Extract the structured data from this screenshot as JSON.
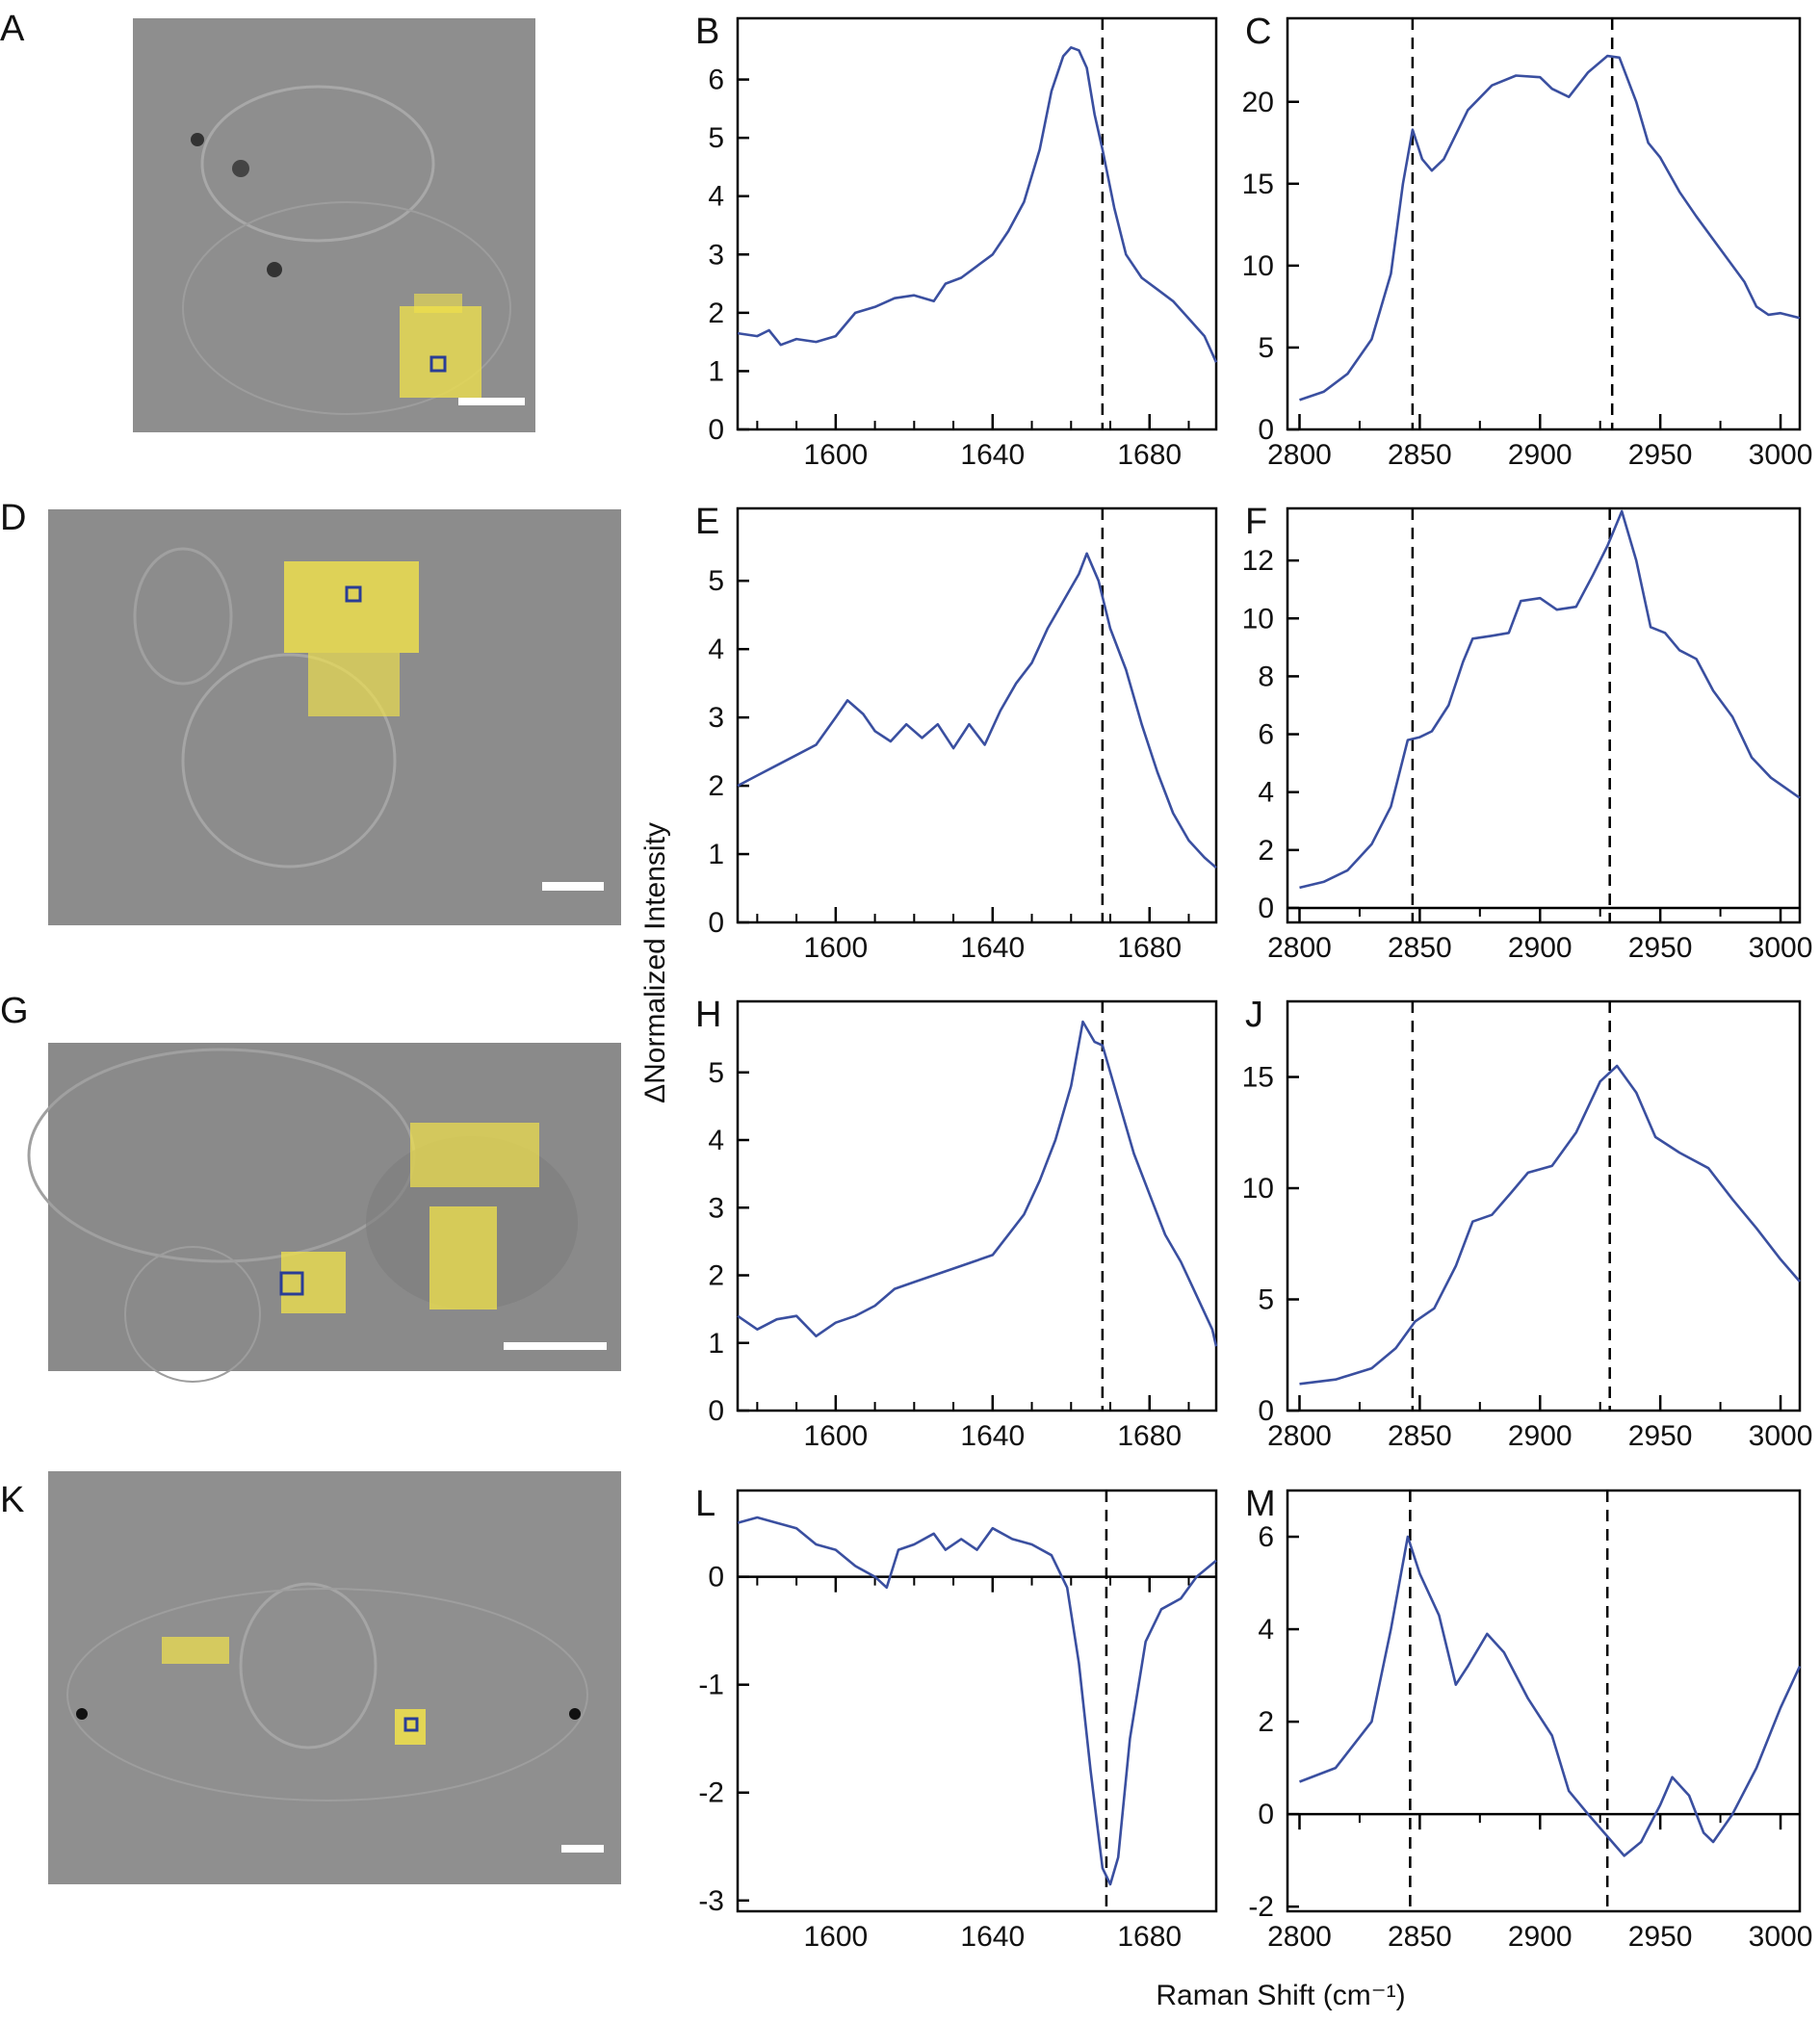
{
  "image_panels": [
    "A",
    "D",
    "G",
    "K"
  ],
  "y_label": "ΔNormalized Intensity",
  "x_label": "Raman Shift (cm⁻¹)",
  "chart_data": [
    {
      "type": "line",
      "title": "B",
      "color": "#3a4fa0",
      "x": [
        1575,
        1580,
        1583,
        1586,
        1590,
        1595,
        1600,
        1605,
        1610,
        1615,
        1620,
        1625,
        1628,
        1632,
        1636,
        1640,
        1644,
        1648,
        1652,
        1655,
        1658,
        1660,
        1662,
        1664,
        1666,
        1668,
        1671,
        1674,
        1678,
        1682,
        1686,
        1690,
        1694,
        1697
      ],
      "values": [
        1.65,
        1.6,
        1.7,
        1.45,
        1.55,
        1.5,
        1.6,
        2.0,
        2.1,
        2.25,
        2.3,
        2.2,
        2.5,
        2.6,
        2.8,
        3.0,
        3.4,
        3.9,
        4.8,
        5.8,
        6.4,
        6.55,
        6.5,
        6.2,
        5.4,
        4.8,
        3.8,
        3.0,
        2.6,
        2.4,
        2.2,
        1.9,
        1.6,
        1.15
      ],
      "xlim": [
        1575,
        1697
      ],
      "xticks": [
        1600,
        1640,
        1680
      ],
      "xminorticks": [
        1580,
        1590,
        1610,
        1620,
        1630,
        1650,
        1660,
        1670,
        1690
      ],
      "ylim": [
        0,
        7.05
      ],
      "yticks": [
        0,
        1,
        2,
        3,
        4,
        5,
        6
      ],
      "vlines": [
        1668
      ]
    },
    {
      "type": "line",
      "title": "C",
      "color": "#3a4fa0",
      "x": [
        2800,
        2810,
        2820,
        2830,
        2838,
        2843,
        2847,
        2851,
        2855,
        2860,
        2865,
        2870,
        2880,
        2890,
        2900,
        2905,
        2912,
        2920,
        2928,
        2933,
        2940,
        2945,
        2950,
        2958,
        2965,
        2975,
        2985,
        2990,
        2995,
        3000,
        3008
      ],
      "values": [
        1.8,
        2.3,
        3.4,
        5.5,
        9.5,
        15,
        18.3,
        16.5,
        15.8,
        16.5,
        18,
        19.5,
        21,
        21.6,
        21.5,
        20.8,
        20.3,
        21.8,
        22.8,
        22.7,
        20,
        17.5,
        16.6,
        14.5,
        13,
        11,
        9,
        7.5,
        7,
        7.1,
        6.8
      ],
      "xlim": [
        2795,
        3008
      ],
      "xticks": [
        2800,
        2850,
        2900,
        2950,
        3000
      ],
      "xminorticks": [
        2825,
        2875,
        2925,
        2975
      ],
      "ylim": [
        0,
        25.1
      ],
      "yticks": [
        0,
        5,
        10,
        15,
        20
      ],
      "vlines": [
        2847,
        2930
      ]
    },
    {
      "type": "line",
      "title": "E",
      "color": "#3a4fa0",
      "x": [
        1575,
        1580,
        1585,
        1590,
        1595,
        1600,
        1603,
        1607,
        1610,
        1614,
        1618,
        1622,
        1626,
        1630,
        1634,
        1638,
        1642,
        1646,
        1650,
        1654,
        1658,
        1662,
        1664,
        1667,
        1670,
        1674,
        1678,
        1682,
        1686,
        1690,
        1694,
        1697
      ],
      "values": [
        2.0,
        2.15,
        2.3,
        2.45,
        2.6,
        3.0,
        3.25,
        3.05,
        2.8,
        2.65,
        2.9,
        2.7,
        2.9,
        2.55,
        2.9,
        2.6,
        3.1,
        3.5,
        3.8,
        4.3,
        4.7,
        5.1,
        5.4,
        5.0,
        4.3,
        3.7,
        2.9,
        2.2,
        1.6,
        1.2,
        0.95,
        0.8
      ],
      "xlim": [
        1575,
        1697
      ],
      "xticks": [
        1600,
        1640,
        1680
      ],
      "xminorticks": [
        1580,
        1590,
        1610,
        1620,
        1630,
        1650,
        1660,
        1670,
        1690
      ],
      "ylim": [
        0,
        6.06
      ],
      "yticks": [
        0,
        1,
        2,
        3,
        4,
        5
      ],
      "vlines": [
        1668
      ]
    },
    {
      "type": "line",
      "title": "F",
      "color": "#3a4fa0",
      "x": [
        2800,
        2810,
        2820,
        2830,
        2838,
        2845,
        2850,
        2855,
        2862,
        2868,
        2872,
        2880,
        2887,
        2892,
        2900,
        2907,
        2915,
        2922,
        2928,
        2934,
        2940,
        2946,
        2952,
        2958,
        2965,
        2972,
        2980,
        2988,
        2996,
        3008
      ],
      "values": [
        0.7,
        0.9,
        1.3,
        2.2,
        3.5,
        5.8,
        5.9,
        6.1,
        7.0,
        8.5,
        9.3,
        9.4,
        9.5,
        10.6,
        10.7,
        10.3,
        10.4,
        11.5,
        12.5,
        13.7,
        12.0,
        9.7,
        9.5,
        8.9,
        8.6,
        7.5,
        6.6,
        5.2,
        4.5,
        3.8
      ],
      "xlim": [
        2795,
        3008
      ],
      "xticks": [
        2800,
        2850,
        2900,
        2950,
        3000
      ],
      "xminorticks": [
        2825,
        2875,
        2925,
        2975
      ],
      "ylim": [
        -0.5,
        13.8
      ],
      "yticks": [
        0,
        2,
        4,
        6,
        8,
        10,
        12
      ],
      "vlines": [
        2847,
        2929
      ]
    },
    {
      "type": "line",
      "title": "H",
      "color": "#3a4fa0",
      "x": [
        1575,
        1580,
        1585,
        1590,
        1595,
        1600,
        1605,
        1610,
        1615,
        1620,
        1625,
        1630,
        1635,
        1640,
        1644,
        1648,
        1652,
        1656,
        1660,
        1663,
        1666,
        1668,
        1672,
        1676,
        1680,
        1684,
        1688,
        1692,
        1696,
        1697
      ],
      "values": [
        1.4,
        1.2,
        1.35,
        1.4,
        1.1,
        1.3,
        1.4,
        1.55,
        1.8,
        1.9,
        2.0,
        2.1,
        2.2,
        2.3,
        2.6,
        2.9,
        3.4,
        4.0,
        4.8,
        5.75,
        5.45,
        5.4,
        4.6,
        3.8,
        3.2,
        2.6,
        2.2,
        1.7,
        1.2,
        0.95
      ],
      "xlim": [
        1575,
        1697
      ],
      "xticks": [
        1600,
        1640,
        1680
      ],
      "xminorticks": [
        1580,
        1590,
        1610,
        1620,
        1630,
        1650,
        1660,
        1670,
        1690
      ],
      "ylim": [
        0,
        6.05
      ],
      "yticks": [
        0,
        1,
        2,
        3,
        4,
        5
      ],
      "vlines": [
        1668
      ]
    },
    {
      "type": "line",
      "title": "J",
      "color": "#3a4fa0",
      "x": [
        2800,
        2815,
        2830,
        2840,
        2848,
        2856,
        2865,
        2872,
        2880,
        2888,
        2895,
        2905,
        2915,
        2925,
        2932,
        2940,
        2948,
        2958,
        2970,
        2980,
        2990,
        3000,
        3008
      ],
      "values": [
        1.2,
        1.4,
        1.9,
        2.8,
        4.0,
        4.6,
        6.5,
        8.5,
        8.8,
        9.8,
        10.7,
        11.0,
        12.5,
        14.8,
        15.5,
        14.3,
        12.3,
        11.6,
        10.9,
        9.5,
        8.2,
        6.8,
        5.8
      ],
      "xlim": [
        2795,
        3008
      ],
      "xticks": [
        2800,
        2850,
        2900,
        2950,
        3000
      ],
      "xminorticks": [
        2825,
        2875,
        2925,
        2975
      ],
      "ylim": [
        0,
        18.4
      ],
      "yticks": [
        0,
        5,
        10,
        15
      ],
      "vlines": [
        2847,
        2929
      ]
    },
    {
      "type": "line",
      "title": "L",
      "color": "#3a4fa0",
      "x": [
        1575,
        1580,
        1585,
        1590,
        1595,
        1600,
        1605,
        1610,
        1613,
        1616,
        1620,
        1625,
        1628,
        1632,
        1636,
        1640,
        1645,
        1650,
        1655,
        1659,
        1662,
        1665,
        1668,
        1670,
        1672,
        1675,
        1679,
        1683,
        1688,
        1692,
        1697
      ],
      "values": [
        0.5,
        0.55,
        0.5,
        0.45,
        0.3,
        0.25,
        0.1,
        0.0,
        -0.1,
        0.25,
        0.3,
        0.4,
        0.25,
        0.35,
        0.25,
        0.45,
        0.35,
        0.3,
        0.2,
        -0.1,
        -0.8,
        -1.8,
        -2.7,
        -2.85,
        -2.6,
        -1.5,
        -0.6,
        -0.3,
        -0.2,
        0.0,
        0.15
      ],
      "xlim": [
        1575,
        1697
      ],
      "xticks": [
        1600,
        1640,
        1680
      ],
      "xminorticks": [
        1580,
        1590,
        1610,
        1620,
        1630,
        1650,
        1660,
        1670,
        1690
      ],
      "ylim": [
        -3.1,
        0.8
      ],
      "yticks": [
        -3,
        -2,
        -1,
        0
      ],
      "vlines": [
        1669
      ]
    },
    {
      "type": "line",
      "title": "M",
      "color": "#3a4fa0",
      "x": [
        2800,
        2815,
        2830,
        2838,
        2845,
        2850,
        2858,
        2865,
        2870,
        2878,
        2885,
        2895,
        2905,
        2912,
        2920,
        2925,
        2930,
        2935,
        2942,
        2950,
        2955,
        2962,
        2968,
        2972,
        2980,
        2990,
        3000,
        3008
      ],
      "values": [
        0.7,
        1.0,
        2.0,
        4.0,
        6.0,
        5.2,
        4.3,
        2.8,
        3.2,
        3.9,
        3.5,
        2.5,
        1.7,
        0.5,
        0.0,
        -0.3,
        -0.6,
        -0.9,
        -0.6,
        0.2,
        0.8,
        0.4,
        -0.4,
        -0.6,
        0.0,
        1.0,
        2.3,
        3.2
      ],
      "xlim": [
        2795,
        3008
      ],
      "xticks": [
        2800,
        2850,
        2900,
        2950,
        3000
      ],
      "xminorticks": [
        2825,
        2875,
        2925,
        2975
      ],
      "ylim": [
        -2.1,
        7.0
      ],
      "yticks": [
        -2,
        0,
        2,
        4,
        6
      ],
      "vlines": [
        2846,
        2928
      ]
    }
  ]
}
